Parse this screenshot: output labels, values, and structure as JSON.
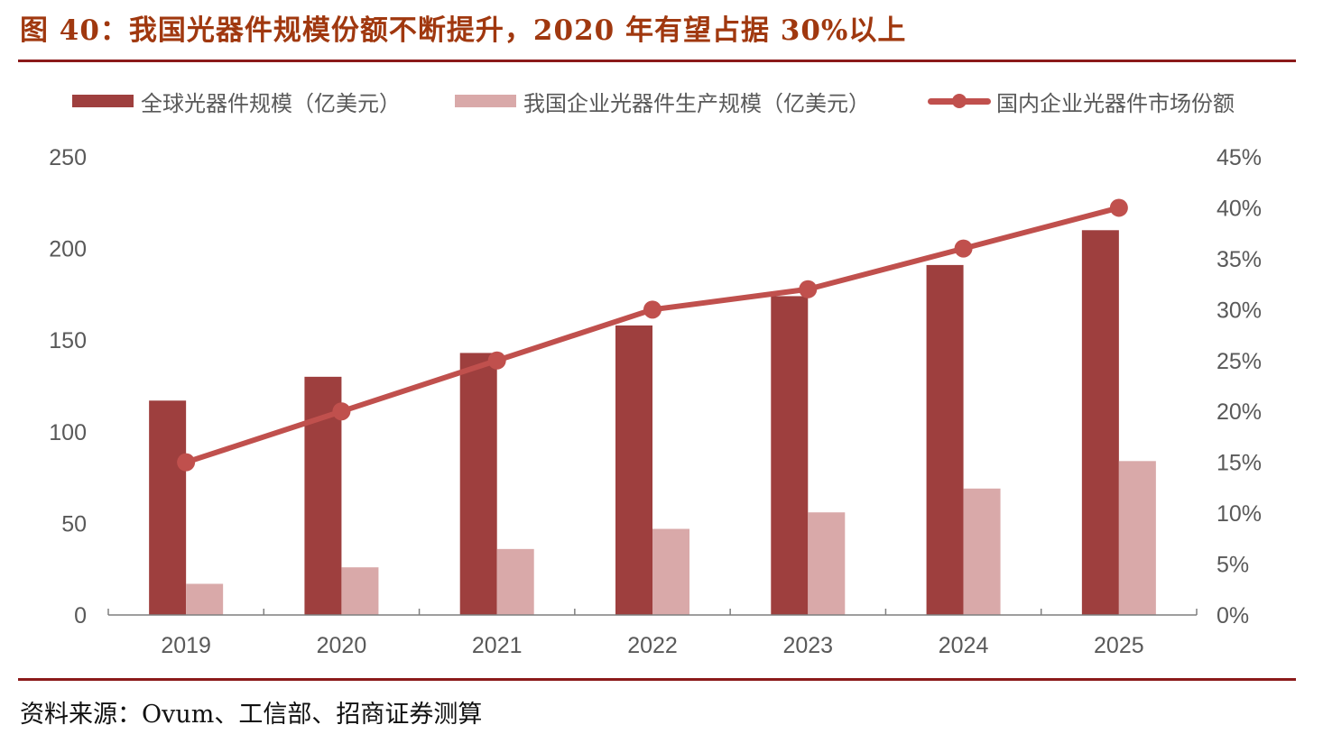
{
  "title": "图 40：我国光器件规模份额不断提升，2020 年有望占据 30%以上",
  "source": "资料来源：Ovum、工信部、招商证券测算",
  "colors": {
    "title": "#a0380f",
    "rule": "#8b1a1a",
    "global_bar": "#9e3f3e",
    "domestic_bar": "#d9a9a9",
    "share_line": "#c0504d",
    "axis_text": "#595959",
    "axis_line": "#7f7f7f"
  },
  "legend": [
    {
      "label": "全球光器件规模（亿美元）",
      "type": "bar"
    },
    {
      "label": "我国企业光器件生产规模（亿美元）",
      "type": "bar"
    },
    {
      "label": "国内企业光器件市场份额",
      "type": "line"
    }
  ],
  "chart_data": {
    "type": "bar",
    "title": "我国光器件规模份额不断提升，2020 年有望占据 30%以上",
    "categories": [
      "2019",
      "2020",
      "2021",
      "2022",
      "2023",
      "2024",
      "2025"
    ],
    "series": [
      {
        "name": "全球光器件规模（亿美元）",
        "type": "bar",
        "axis": "left",
        "values": [
          117,
          130,
          143,
          158,
          174,
          191,
          210
        ]
      },
      {
        "name": "我国企业光器件生产规模（亿美元）",
        "type": "bar",
        "axis": "left",
        "values": [
          17,
          26,
          36,
          47,
          56,
          69,
          84
        ]
      },
      {
        "name": "国内企业光器件市场份额",
        "type": "line",
        "axis": "right",
        "unit": "%",
        "values": [
          15,
          20,
          25,
          30,
          32,
          36,
          40
        ]
      }
    ],
    "y_left": {
      "min": 0,
      "max": 250,
      "ticks": [
        "0",
        "50",
        "100",
        "150",
        "200",
        "250"
      ]
    },
    "y_right": {
      "min": 0,
      "max": 45,
      "ticks": [
        "0%",
        "5%",
        "10%",
        "15%",
        "20%",
        "25%",
        "30%",
        "35%",
        "40%",
        "45%"
      ]
    },
    "xlabel": "",
    "ylabel": "",
    "grid": false,
    "legend_position": "top"
  }
}
